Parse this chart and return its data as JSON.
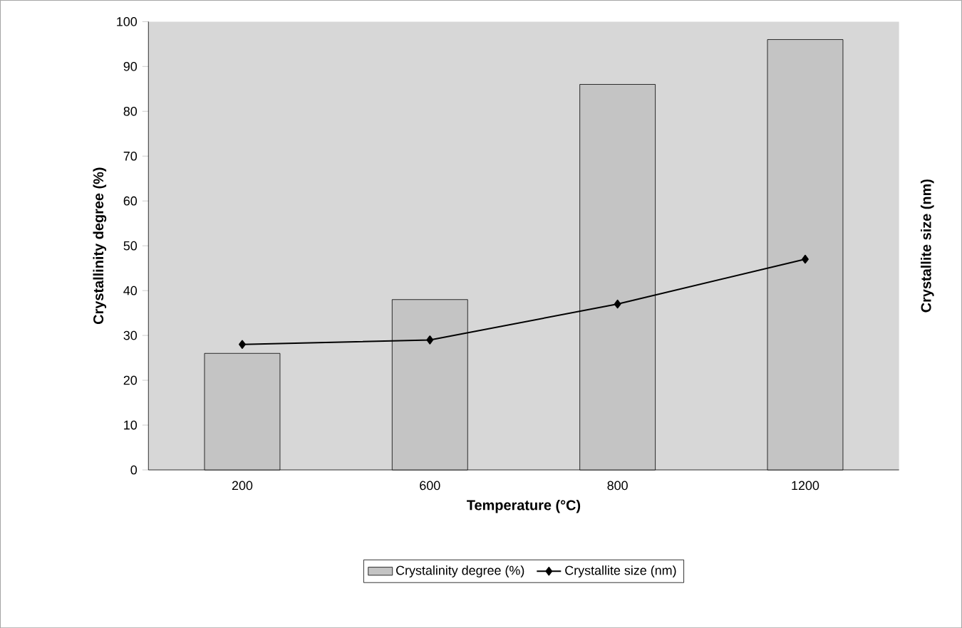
{
  "chart_data": {
    "type": "bar",
    "xlabel": "Temperature (°C)",
    "ylabel": "Crystallinity degree (%)",
    "y2label": "Crystallite size (nm)",
    "categories": [
      "200",
      "600",
      "800",
      "1200"
    ],
    "series": [
      {
        "name": "Crystalinity degree (%)",
        "color": "#c4c4c4",
        "values": [
          26,
          38,
          86,
          96
        ]
      },
      {
        "name": "Crystallite size (nm)",
        "type": "line",
        "color": "#000000",
        "marker": "diamond",
        "values": [
          28,
          29,
          37,
          47
        ]
      }
    ],
    "ylim": [
      0,
      100
    ],
    "yticks": [
      0,
      10,
      20,
      30,
      40,
      50,
      60,
      70,
      80,
      90,
      100
    ],
    "grid": false,
    "legend": "bottom"
  }
}
